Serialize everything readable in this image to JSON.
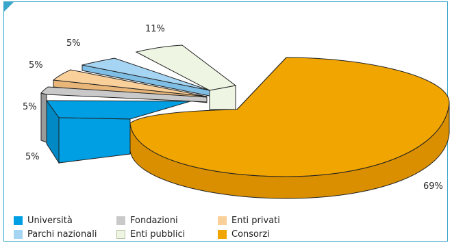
{
  "chart_data": {
    "type": "pie",
    "title": "",
    "categories": [
      "Università",
      "Fondazioni",
      "Enti privati",
      "Parchi nazionali",
      "Enti pubblici",
      "Consorzi"
    ],
    "values": [
      5,
      5,
      5,
      5,
      11,
      69
    ],
    "value_labels": [
      "5%",
      "5%",
      "5%",
      "5%",
      "11%",
      "69%"
    ],
    "colors": [
      "#009fe3",
      "#c9c9c9",
      "#f9cf9a",
      "#a6d5f4",
      "#eef6e3",
      "#f0a500"
    ],
    "exploded_slice": "Consorzi",
    "legend_position": "bottom"
  },
  "legend": {
    "items": [
      {
        "label": "Università",
        "color": "#009fe3"
      },
      {
        "label": "Fondazioni",
        "color": "#c9c9c9"
      },
      {
        "label": "Enti privati",
        "color": "#f9cf9a"
      },
      {
        "label": "Parchi nazionali",
        "color": "#a6d5f4"
      },
      {
        "label": "Enti pubblici",
        "color": "#eef6e3"
      },
      {
        "label": "Consorzi",
        "color": "#f0a500"
      }
    ]
  }
}
